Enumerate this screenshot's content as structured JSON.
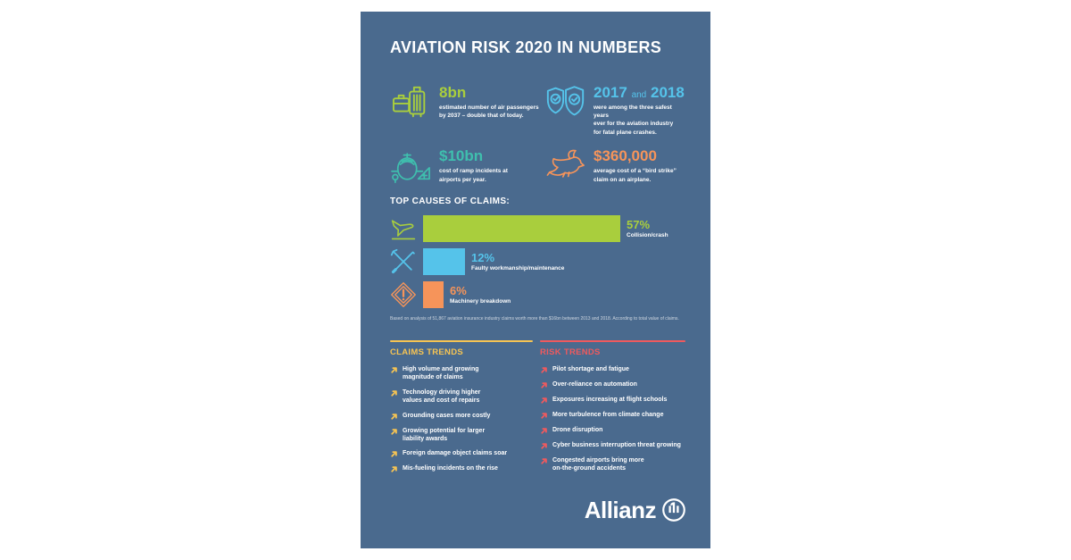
{
  "title": "AVIATION RISK 2020 IN NUMBERS",
  "panel_background": "#4a6a8e",
  "stats": [
    {
      "value": "8bn",
      "color": "#a9ce3d",
      "desc": "estimated number of air passengers\nby 2037 – double that of today."
    },
    {
      "value_parts": [
        "2017",
        "and",
        "2018"
      ],
      "color": "#55c3ea",
      "desc": "were among the three safest years\never for the aviation industry\nfor fatal plane crashes."
    },
    {
      "value": "$10bn",
      "color": "#3fbfae",
      "desc": "cost of ramp incidents at\nairports per year."
    },
    {
      "value": "$360,000",
      "color": "#f6945a",
      "desc": "average cost of a “bird strike”\nclaim on an airplane."
    }
  ],
  "chart_data": {
    "type": "bar",
    "orientation": "horizontal",
    "title": "TOP CAUSES OF CLAIMS:",
    "categories": [
      "Collision/crash",
      "Faulty workmanship/maintenance",
      "Machinery breakdown"
    ],
    "values": [
      57,
      12,
      6
    ],
    "value_labels": [
      "57%",
      "12%",
      "6%"
    ],
    "unit": "%",
    "xlim": [
      0,
      57
    ],
    "grid": false,
    "colors": [
      "#a9ce3d",
      "#55c3ea",
      "#f6945a"
    ],
    "footnote": "Based on analysis of 51,867 aviation insurance industry claims worth more than $16bn between 2013 and 2018. According to total value of claims."
  },
  "trends": {
    "claims": {
      "heading": "CLAIMS TRENDS",
      "color": "#f6c453",
      "items": [
        "High volume and growing\nmagnitude of claims",
        "Technology driving higher\nvalues and cost of repairs",
        "Grounding cases more costly",
        "Growing potential for larger\nliability awards",
        "Foreign damage object claims soar",
        "Mis-fueling incidents on the rise"
      ]
    },
    "risk": {
      "heading": "RISK TRENDS",
      "color": "#ef5a5e",
      "items": [
        "Pilot shortage and fatigue",
        "Over-reliance on automation",
        "Exposures increasing at flight schools",
        "More turbulence from climate change",
        "Drone disruption",
        "Cyber business interruption threat growing",
        "Congested airports bring more\non-the-ground accidents"
      ]
    }
  },
  "logo": {
    "text": "Allianz"
  }
}
